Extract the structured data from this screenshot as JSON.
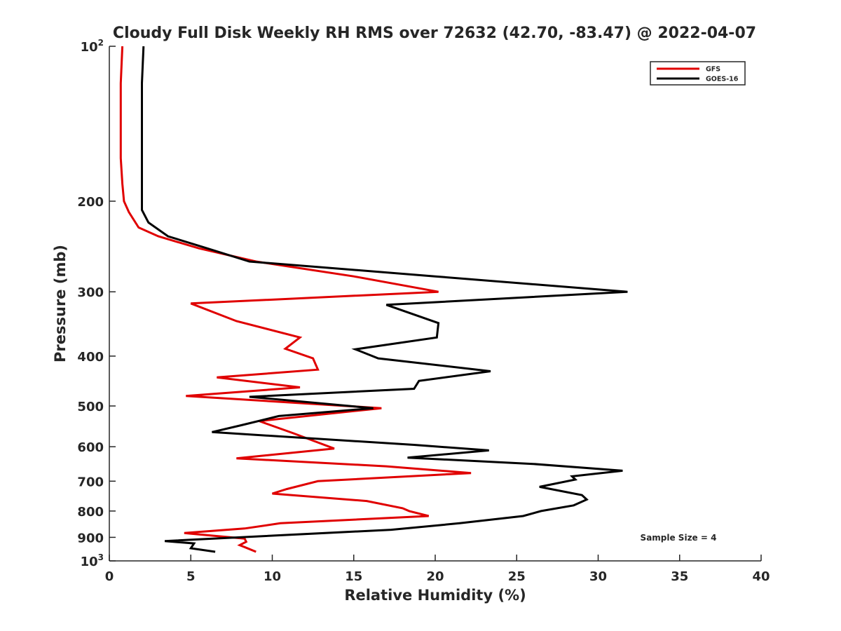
{
  "chart_data": {
    "type": "line",
    "title": "Cloudy Full Disk Weekly RH RMS over 72632 (42.70, -83.47) @ 2022-04-07",
    "xlabel": "Relative Humidity (%)",
    "ylabel": "Pressure (mb)",
    "xlim": [
      0,
      40
    ],
    "ylim": [
      100,
      1000
    ],
    "y_scale": "log",
    "y_reversed": true,
    "grid": false,
    "legend_position": "top-right",
    "annotation": "Sample Size = 4",
    "x_ticks": [
      "0",
      "5",
      "10",
      "15",
      "20",
      "25",
      "30",
      "35",
      "40"
    ],
    "y_ticks": [
      {
        "value": 100,
        "base": "10",
        "exp": "2"
      },
      {
        "value": 200,
        "label": "200"
      },
      {
        "value": 300,
        "label": "300"
      },
      {
        "value": 400,
        "label": "400"
      },
      {
        "value": 500,
        "label": "500"
      },
      {
        "value": 600,
        "label": "600"
      },
      {
        "value": 700,
        "label": "700"
      },
      {
        "value": 800,
        "label": "800"
      },
      {
        "value": 900,
        "label": "900"
      },
      {
        "value": 1000,
        "base": "10",
        "exp": "3"
      }
    ],
    "series": [
      {
        "name": "GFS",
        "color": "#e00000",
        "x": [
          0.8,
          0.7,
          0.7,
          0.7,
          0.8,
          0.9,
          1.2,
          1.8,
          3.0,
          5.5,
          9.0,
          15.0,
          20.2,
          5.0,
          7.8,
          11.7,
          10.8,
          12.5,
          12.8,
          6.6,
          11.7,
          4.7,
          16.7,
          9.2,
          11.3,
          13.8,
          7.8,
          17.0,
          22.2,
          12.8,
          10.9,
          10.0,
          15.8,
          18.0,
          18.4,
          19.6,
          10.5,
          8.3,
          4.6,
          8.3,
          8.4,
          8.0,
          8.3,
          9.0
        ],
        "y": [
          100,
          118,
          140,
          165,
          185,
          200,
          210,
          225,
          234,
          247,
          262,
          280,
          300,
          316,
          342,
          368,
          387,
          404,
          425,
          440,
          460,
          478,
          505,
          535,
          565,
          605,
          632,
          655,
          675,
          700,
          725,
          740,
          765,
          790,
          800,
          818,
          845,
          865,
          883,
          905,
          918,
          932,
          940,
          960
        ]
      },
      {
        "name": "GOES-16",
        "color": "#000000",
        "x": [
          2.1,
          2.0,
          2.0,
          2.0,
          2.0,
          2.0,
          2.0,
          2.4,
          3.6,
          6.0,
          8.6,
          20.0,
          31.8,
          17.0,
          20.2,
          20.1,
          15.1,
          16.5,
          23.4,
          19.0,
          18.7,
          8.6,
          16.2,
          10.4,
          8.1,
          6.3,
          18.7,
          23.3,
          18.3,
          26.0,
          31.5,
          28.4,
          28.6,
          26.4,
          29.0,
          29.3,
          28.5,
          26.5,
          25.4,
          21.5,
          17.3,
          3.4,
          5.2,
          5.0,
          6.5
        ],
        "y": [
          100,
          118,
          140,
          165,
          185,
          200,
          208,
          220,
          234,
          247,
          262,
          280,
          300,
          318,
          345,
          368,
          388,
          404,
          428,
          447,
          463,
          480,
          505,
          523,
          545,
          562,
          595,
          610,
          630,
          648,
          668,
          685,
          695,
          718,
          745,
          760,
          780,
          800,
          818,
          845,
          870,
          915,
          925,
          945,
          960
        ]
      }
    ]
  }
}
